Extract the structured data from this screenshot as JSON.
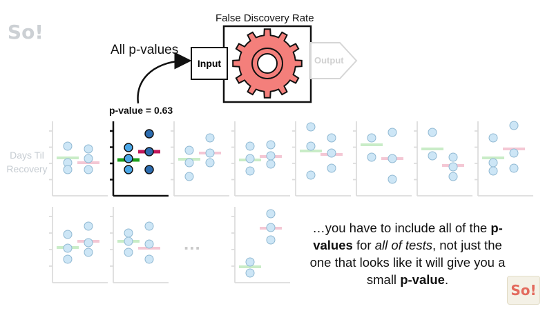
{
  "diagram": {
    "title": "False Discovery Rate",
    "input_label": "Input",
    "output_label": "Output",
    "all_pvalues_label": "All p-values",
    "pvalue_label": "p-value = 0.63",
    "ylabel": "Days Til Recovery",
    "ellipsis": "...",
    "caption": {
      "p1": "…you have to include all of the ",
      "b1": "p-values",
      "p2": " for ",
      "i1": "all of tests",
      "p3": ", not just the one that looks like it will give you a small ",
      "b2": "p-value",
      "p4": "."
    },
    "logo_text": "So!",
    "colors": {
      "gear": "#f47f7b",
      "gear_center": "#ffffff",
      "light_point": "#cde6f6",
      "light_point_stroke": "#8fb8d2",
      "green_line": "#c9ecc7",
      "pink_line": "#f4c7d4",
      "highlight_green": "#1ea01e",
      "highlight_magenta": "#c2185b",
      "highlight_blue": "#2c6cb0",
      "highlight_light": "#4aa6e6"
    }
  }
}
